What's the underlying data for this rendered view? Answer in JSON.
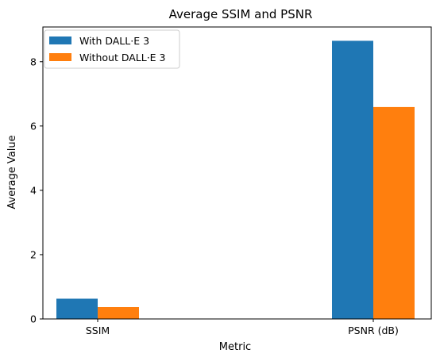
{
  "chart_data": {
    "type": "bar",
    "title": "Average SSIM and PSNR",
    "xlabel": "Metric",
    "ylabel": "Average Value",
    "categories": [
      "SSIM",
      "PSNR (dB)"
    ],
    "series": [
      {
        "name": "With DALL·E 3",
        "color": "#1f77b4",
        "values": [
          0.63,
          8.65
        ]
      },
      {
        "name": "Without DALL·E 3",
        "color": "#ff7f0e",
        "values": [
          0.37,
          6.59
        ]
      }
    ],
    "ylim": [
      0,
      9.08
    ],
    "yticks": [
      0,
      2,
      4,
      6,
      8
    ],
    "grid": false,
    "legend_position": "top-left"
  }
}
